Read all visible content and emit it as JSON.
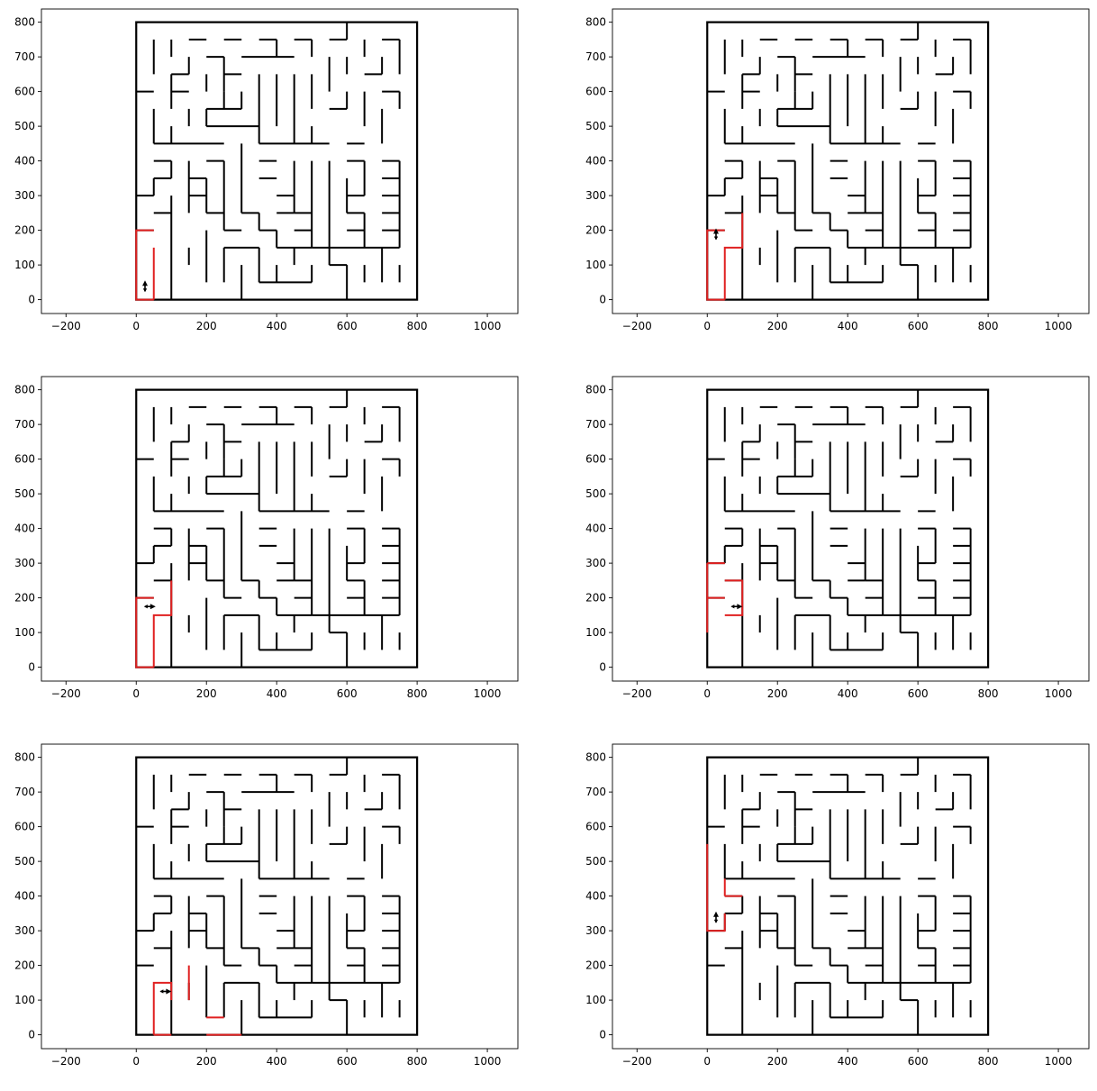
{
  "chart_data": {
    "type": "maze-path-figure",
    "layout": {
      "rows": 3,
      "cols": 2
    },
    "xlim": [
      -270,
      1087
    ],
    "ylim": [
      -40,
      838
    ],
    "xticks": [
      -200,
      0,
      200,
      400,
      600,
      800,
      1000
    ],
    "yticks": [
      0,
      100,
      200,
      300,
      400,
      500,
      600,
      700,
      800
    ],
    "grid": false,
    "maze_border": [
      [
        0,
        0
      ],
      [
        800,
        0
      ],
      [
        800,
        800
      ],
      [
        0,
        800
      ],
      [
        0,
        0
      ]
    ],
    "colors": {
      "maze": "#000000",
      "path": "#e02020",
      "agent": "#000000"
    },
    "maze_walls": [
      [
        [
          0,
          600
        ],
        [
          50,
          600
        ]
      ],
      [
        [
          0,
          300
        ],
        [
          50,
          300
        ]
      ],
      [
        [
          0,
          200
        ],
        [
          50,
          200
        ]
      ],
      [
        [
          50,
          750
        ],
        [
          50,
          650
        ]
      ],
      [
        [
          50,
          550
        ],
        [
          50,
          450
        ]
      ],
      [
        [
          50,
          450
        ],
        [
          250,
          450
        ]
      ],
      [
        [
          50,
          400
        ],
        [
          100,
          400
        ]
      ],
      [
        [
          50,
          350
        ],
        [
          100,
          350
        ]
      ],
      [
        [
          50,
          350
        ],
        [
          50,
          300
        ]
      ],
      [
        [
          50,
          250
        ],
        [
          100,
          250
        ]
      ],
      [
        [
          100,
          750
        ],
        [
          100,
          700
        ]
      ],
      [
        [
          100,
          650
        ],
        [
          100,
          550
        ]
      ],
      [
        [
          100,
          500
        ],
        [
          100,
          450
        ]
      ],
      [
        [
          100,
          400
        ],
        [
          100,
          350
        ]
      ],
      [
        [
          100,
          300
        ],
        [
          100,
          0
        ]
      ],
      [
        [
          100,
          650
        ],
        [
          150,
          650
        ]
      ],
      [
        [
          100,
          600
        ],
        [
          150,
          600
        ]
      ],
      [
        [
          150,
          750
        ],
        [
          200,
          750
        ]
      ],
      [
        [
          150,
          700
        ],
        [
          150,
          650
        ]
      ],
      [
        [
          150,
          550
        ],
        [
          150,
          500
        ]
      ],
      [
        [
          150,
          400
        ],
        [
          150,
          250
        ]
      ],
      [
        [
          150,
          350
        ],
        [
          200,
          350
        ]
      ],
      [
        [
          150,
          300
        ],
        [
          200,
          300
        ]
      ],
      [
        [
          150,
          150
        ],
        [
          150,
          100
        ]
      ],
      [
        [
          200,
          700
        ],
        [
          250,
          700
        ]
      ],
      [
        [
          200,
          650
        ],
        [
          200,
          600
        ]
      ],
      [
        [
          200,
          550
        ],
        [
          300,
          550
        ]
      ],
      [
        [
          200,
          550
        ],
        [
          200,
          500
        ]
      ],
      [
        [
          200,
          500
        ],
        [
          350,
          500
        ]
      ],
      [
        [
          200,
          400
        ],
        [
          250,
          400
        ]
      ],
      [
        [
          200,
          350
        ],
        [
          200,
          250
        ]
      ],
      [
        [
          200,
          250
        ],
        [
          250,
          250
        ]
      ],
      [
        [
          200,
          200
        ],
        [
          200,
          50
        ]
      ],
      [
        [
          250,
          750
        ],
        [
          300,
          750
        ]
      ],
      [
        [
          250,
          700
        ],
        [
          250,
          600
        ]
      ],
      [
        [
          250,
          650
        ],
        [
          300,
          650
        ]
      ],
      [
        [
          250,
          600
        ],
        [
          250,
          550
        ]
      ],
      [
        [
          250,
          400
        ],
        [
          250,
          200
        ]
      ],
      [
        [
          250,
          200
        ],
        [
          300,
          200
        ]
      ],
      [
        [
          250,
          150
        ],
        [
          350,
          150
        ]
      ],
      [
        [
          250,
          150
        ],
        [
          250,
          50
        ]
      ],
      [
        [
          300,
          700
        ],
        [
          450,
          700
        ]
      ],
      [
        [
          300,
          600
        ],
        [
          300,
          550
        ]
      ],
      [
        [
          300,
          450
        ],
        [
          300,
          250
        ]
      ],
      [
        [
          300,
          250
        ],
        [
          350,
          250
        ]
      ],
      [
        [
          300,
          100
        ],
        [
          300,
          0
        ]
      ],
      [
        [
          350,
          750
        ],
        [
          400,
          750
        ]
      ],
      [
        [
          350,
          650
        ],
        [
          350,
          450
        ]
      ],
      [
        [
          350,
          450
        ],
        [
          550,
          450
        ]
      ],
      [
        [
          350,
          400
        ],
        [
          400,
          400
        ]
      ],
      [
        [
          350,
          350
        ],
        [
          400,
          350
        ]
      ],
      [
        [
          350,
          250
        ],
        [
          350,
          200
        ]
      ],
      [
        [
          350,
          200
        ],
        [
          400,
          200
        ]
      ],
      [
        [
          350,
          150
        ],
        [
          350,
          50
        ]
      ],
      [
        [
          350,
          50
        ],
        [
          500,
          50
        ]
      ],
      [
        [
          400,
          750
        ],
        [
          400,
          700
        ]
      ],
      [
        [
          400,
          650
        ],
        [
          400,
          500
        ]
      ],
      [
        [
          400,
          300
        ],
        [
          450,
          300
        ]
      ],
      [
        [
          400,
          250
        ],
        [
          450,
          250
        ]
      ],
      [
        [
          400,
          200
        ],
        [
          400,
          150
        ]
      ],
      [
        [
          400,
          150
        ],
        [
          500,
          150
        ]
      ],
      [
        [
          400,
          100
        ],
        [
          400,
          50
        ]
      ],
      [
        [
          450,
          750
        ],
        [
          500,
          750
        ]
      ],
      [
        [
          450,
          650
        ],
        [
          450,
          450
        ]
      ],
      [
        [
          450,
          400
        ],
        [
          450,
          250
        ]
      ],
      [
        [
          450,
          250
        ],
        [
          500,
          250
        ]
      ],
      [
        [
          450,
          200
        ],
        [
          500,
          200
        ]
      ],
      [
        [
          450,
          150
        ],
        [
          450,
          100
        ]
      ],
      [
        [
          500,
          750
        ],
        [
          500,
          700
        ]
      ],
      [
        [
          500,
          650
        ],
        [
          500,
          550
        ]
      ],
      [
        [
          500,
          500
        ],
        [
          500,
          450
        ]
      ],
      [
        [
          500,
          400
        ],
        [
          500,
          150
        ]
      ],
      [
        [
          500,
          150
        ],
        [
          750,
          150
        ]
      ],
      [
        [
          500,
          100
        ],
        [
          500,
          50
        ]
      ],
      [
        [
          550,
          750
        ],
        [
          600,
          750
        ]
      ],
      [
        [
          550,
          700
        ],
        [
          550,
          600
        ]
      ],
      [
        [
          550,
          550
        ],
        [
          600,
          550
        ]
      ],
      [
        [
          550,
          400
        ],
        [
          550,
          100
        ]
      ],
      [
        [
          550,
          100
        ],
        [
          600,
          100
        ]
      ],
      [
        [
          600,
          800
        ],
        [
          600,
          750
        ]
      ],
      [
        [
          600,
          700
        ],
        [
          600,
          650
        ]
      ],
      [
        [
          600,
          600
        ],
        [
          600,
          550
        ]
      ],
      [
        [
          600,
          450
        ],
        [
          650,
          450
        ]
      ],
      [
        [
          600,
          400
        ],
        [
          650,
          400
        ]
      ],
      [
        [
          600,
          350
        ],
        [
          600,
          250
        ]
      ],
      [
        [
          600,
          300
        ],
        [
          650,
          300
        ]
      ],
      [
        [
          600,
          250
        ],
        [
          650,
          250
        ]
      ],
      [
        [
          600,
          200
        ],
        [
          650,
          200
        ]
      ],
      [
        [
          600,
          100
        ],
        [
          600,
          0
        ]
      ],
      [
        [
          650,
          750
        ],
        [
          650,
          700
        ]
      ],
      [
        [
          650,
          650
        ],
        [
          700,
          650
        ]
      ],
      [
        [
          650,
          600
        ],
        [
          650,
          500
        ]
      ],
      [
        [
          650,
          400
        ],
        [
          650,
          300
        ]
      ],
      [
        [
          650,
          250
        ],
        [
          650,
          150
        ]
      ],
      [
        [
          650,
          100
        ],
        [
          650,
          50
        ]
      ],
      [
        [
          700,
          750
        ],
        [
          750,
          750
        ]
      ],
      [
        [
          700,
          700
        ],
        [
          700,
          650
        ]
      ],
      [
        [
          700,
          600
        ],
        [
          750,
          600
        ]
      ],
      [
        [
          700,
          550
        ],
        [
          700,
          450
        ]
      ],
      [
        [
          700,
          400
        ],
        [
          750,
          400
        ]
      ],
      [
        [
          700,
          350
        ],
        [
          750,
          350
        ]
      ],
      [
        [
          700,
          300
        ],
        [
          750,
          300
        ]
      ],
      [
        [
          700,
          250
        ],
        [
          750,
          250
        ]
      ],
      [
        [
          700,
          200
        ],
        [
          750,
          200
        ]
      ],
      [
        [
          700,
          150
        ],
        [
          700,
          50
        ]
      ],
      [
        [
          750,
          750
        ],
        [
          750,
          650
        ]
      ],
      [
        [
          750,
          600
        ],
        [
          750,
          550
        ]
      ],
      [
        [
          750,
          400
        ],
        [
          750,
          150
        ]
      ],
      [
        [
          750,
          100
        ],
        [
          750,
          50
        ]
      ]
    ],
    "panels": [
      {
        "path": [
          [
            [
              50,
              0
            ],
            [
              0,
              0
            ],
            [
              0,
              200
            ],
            [
              50,
              200
            ]
          ],
          [
            [
              50,
              0
            ],
            [
              50,
              150
            ]
          ]
        ],
        "agent": {
          "x": 25,
          "y": 40,
          "dir": "up"
        }
      },
      {
        "path": [
          [
            [
              50,
              0
            ],
            [
              0,
              0
            ],
            [
              0,
              200
            ],
            [
              50,
              200
            ]
          ],
          [
            [
              50,
              0
            ],
            [
              50,
              150
            ],
            [
              100,
              150
            ],
            [
              100,
              250
            ]
          ]
        ],
        "agent": {
          "x": 25,
          "y": 190,
          "dir": "up"
        }
      },
      {
        "path": [
          [
            [
              50,
              0
            ],
            [
              0,
              0
            ],
            [
              0,
              200
            ],
            [
              50,
              200
            ]
          ],
          [
            [
              50,
              0
            ],
            [
              50,
              150
            ],
            [
              100,
              150
            ],
            [
              100,
              250
            ]
          ]
        ],
        "agent": {
          "x": 40,
          "y": 175,
          "dir": "right"
        }
      },
      {
        "path": [
          [
            [
              0,
              300
            ],
            [
              0,
              100
            ]
          ],
          [
            [
              0,
              300
            ],
            [
              50,
              300
            ]
          ],
          [
            [
              0,
              200
            ],
            [
              50,
              200
            ]
          ],
          [
            [
              50,
              150
            ],
            [
              100,
              150
            ],
            [
              100,
              250
            ],
            [
              50,
              250
            ]
          ]
        ],
        "agent": {
          "x": 85,
          "y": 175,
          "dir": "right"
        }
      },
      {
        "path": [
          [
            [
              50,
              0
            ],
            [
              100,
              0
            ]
          ],
          [
            [
              50,
              0
            ],
            [
              50,
              150
            ],
            [
              100,
              150
            ],
            [
              100,
              100
            ]
          ],
          [
            [
              150,
              200
            ],
            [
              150,
              100
            ]
          ],
          [
            [
              200,
              50
            ],
            [
              250,
              50
            ]
          ],
          [
            [
              200,
              0
            ],
            [
              300,
              0
            ]
          ]
        ],
        "agent": {
          "x": 85,
          "y": 125,
          "dir": "right"
        }
      },
      {
        "path": [
          [
            [
              0,
              550
            ],
            [
              0,
              300
            ],
            [
              50,
              300
            ],
            [
              50,
              350
            ]
          ],
          [
            [
              50,
              400
            ],
            [
              100,
              400
            ]
          ],
          [
            [
              50,
              450
            ],
            [
              50,
              400
            ]
          ]
        ],
        "agent": {
          "x": 25,
          "y": 340,
          "dir": "up"
        }
      }
    ]
  }
}
